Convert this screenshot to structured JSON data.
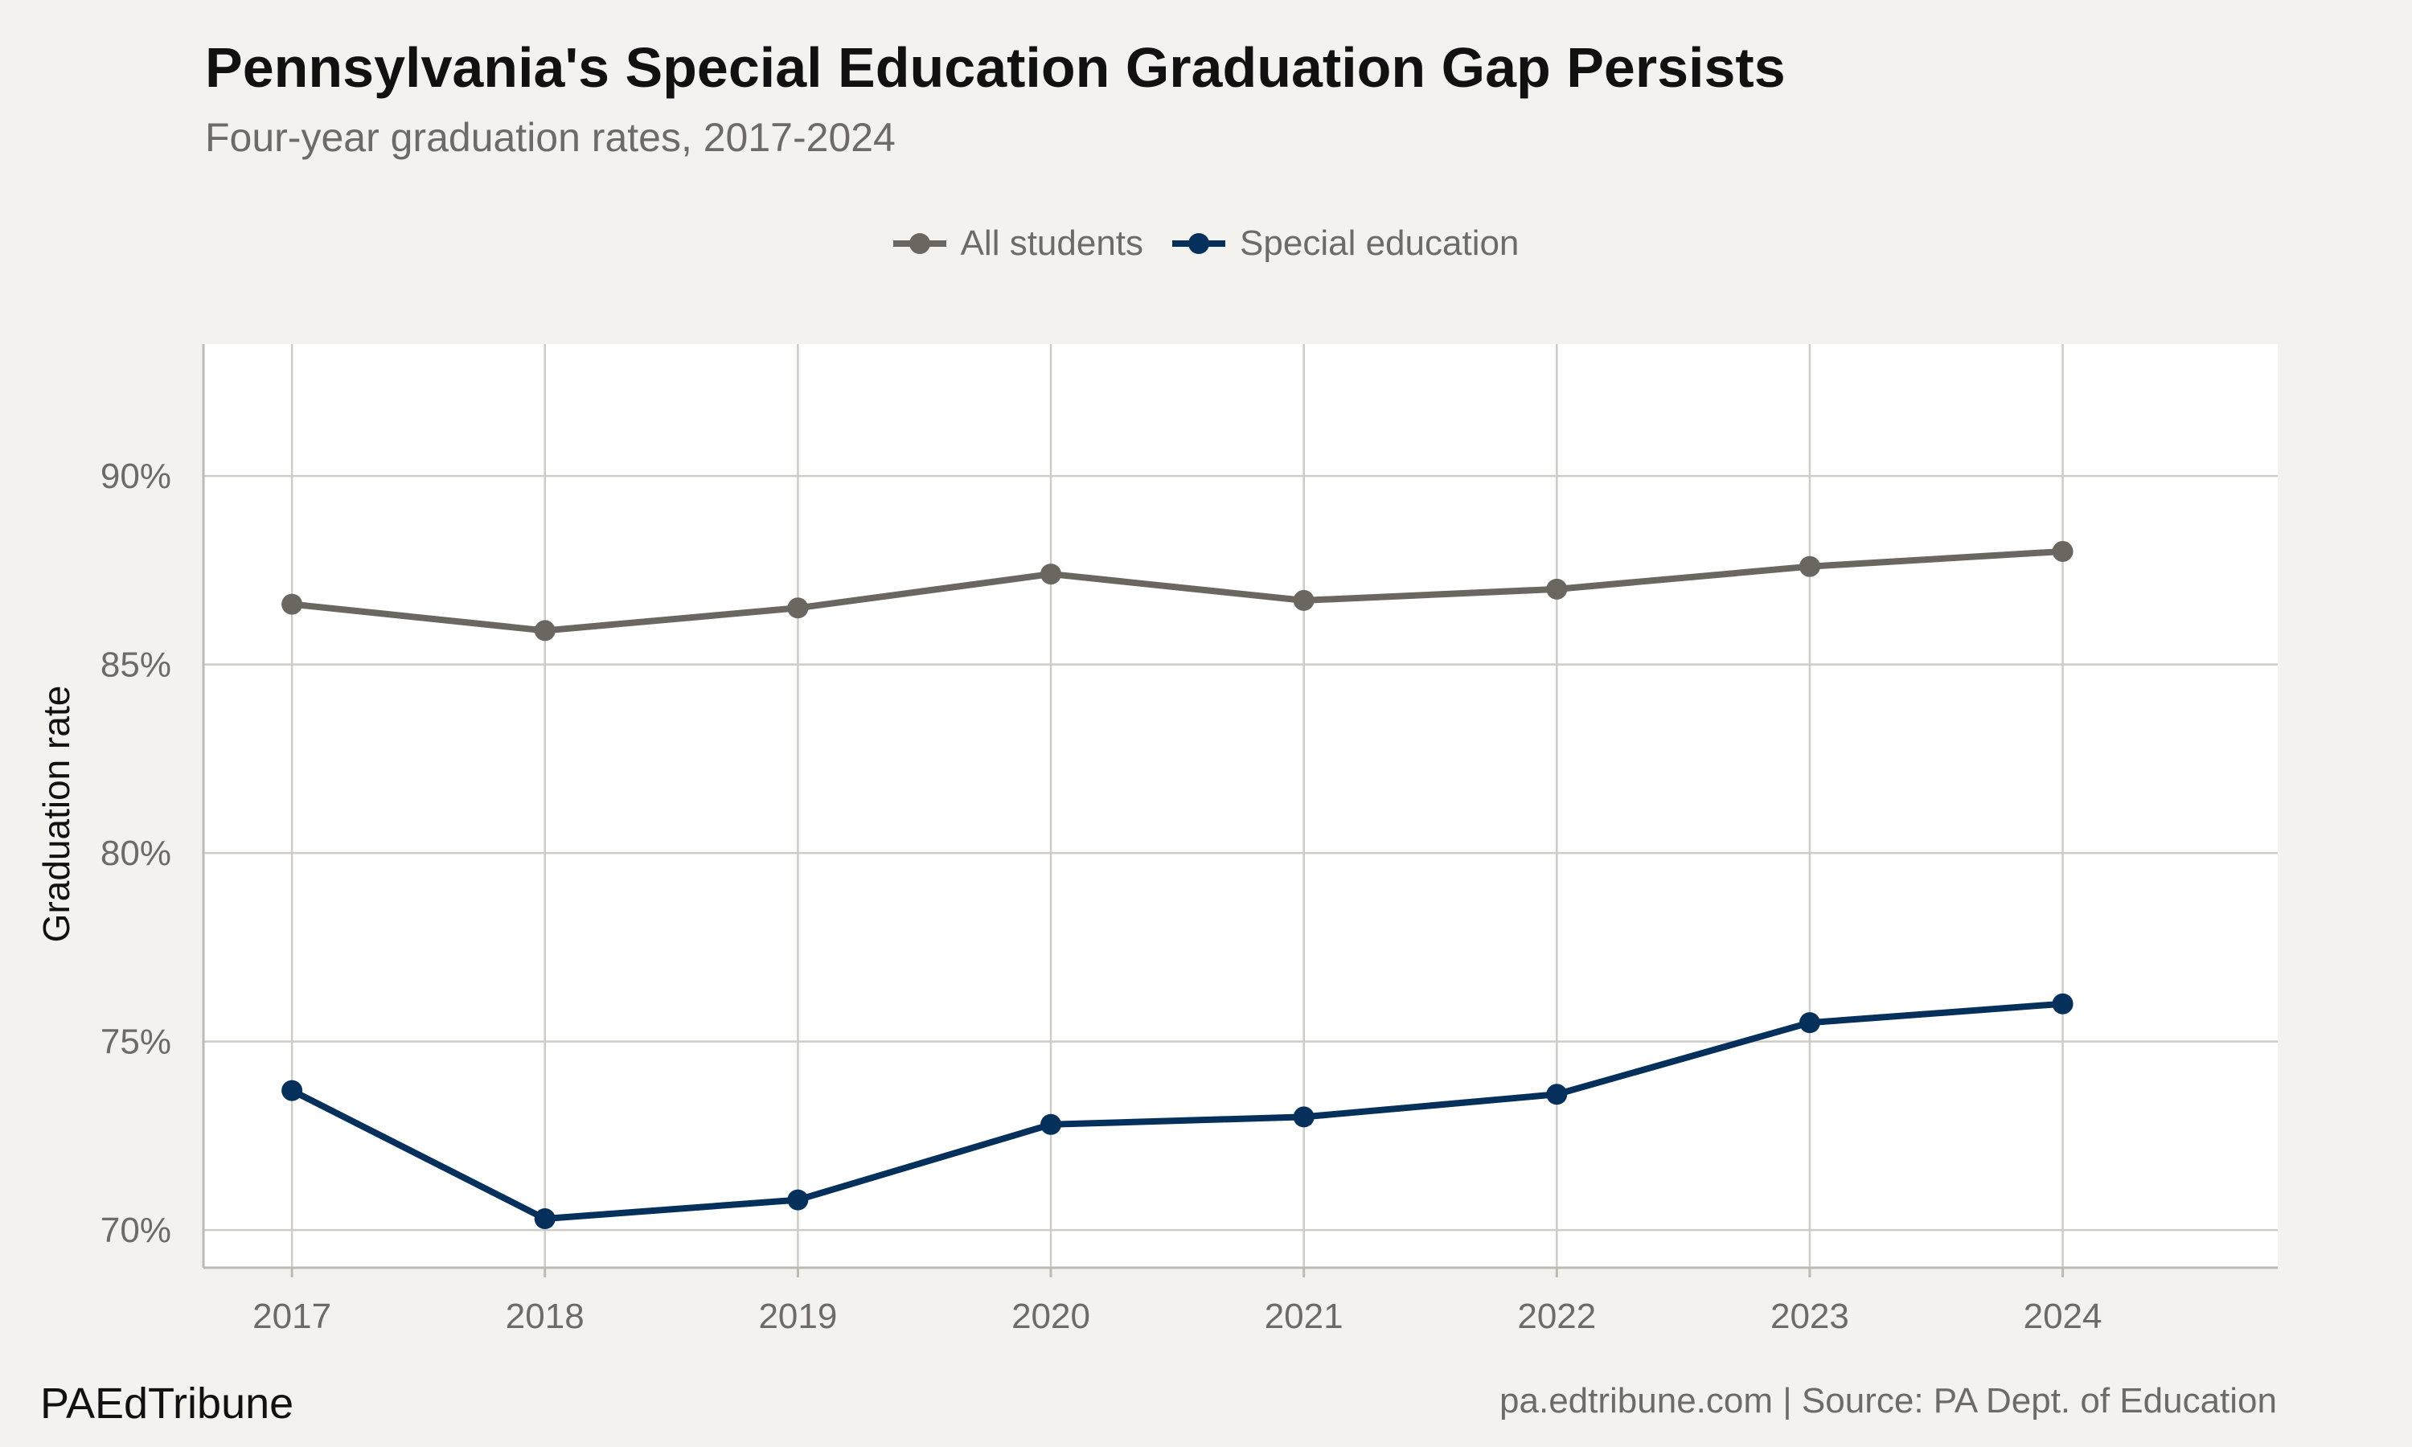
{
  "header": {
    "title": "Pennsylvania's Special Education Graduation Gap Persists",
    "subtitle": "Four-year graduation rates, 2017-2024"
  },
  "footer": {
    "brand": "PAEdTribune",
    "caption": "pa.edtribune.com | Source: PA Dept. of Education"
  },
  "chart_data": {
    "type": "line",
    "title": "Pennsylvania's Special Education Graduation Gap Persists",
    "subtitle": "Four-year graduation rates, 2017-2024",
    "xlabel": "",
    "ylabel": "Graduation rate",
    "x": [
      2017,
      2018,
      2019,
      2020,
      2021,
      2022,
      2023,
      2024
    ],
    "x_tick_labels": [
      "2017",
      "2018",
      "2019",
      "2020",
      "2021",
      "2022",
      "2023",
      "2024"
    ],
    "y_ticks": [
      70,
      75,
      80,
      85,
      90
    ],
    "y_tick_labels": [
      "70%",
      "75%",
      "80%",
      "85%",
      "90%"
    ],
    "ylim": [
      69,
      93.5
    ],
    "xlim": [
      2016.65,
      2024.85
    ],
    "grid": true,
    "legend_position": "top-center",
    "series": [
      {
        "name": "All students",
        "color": "#6b6660",
        "values": [
          86.6,
          85.9,
          86.5,
          87.4,
          86.7,
          87.0,
          87.6,
          88.0
        ]
      },
      {
        "name": "Special education",
        "color": "#05305c",
        "values": [
          73.7,
          70.3,
          70.8,
          72.8,
          73.0,
          73.6,
          75.5,
          76.0
        ]
      }
    ]
  }
}
